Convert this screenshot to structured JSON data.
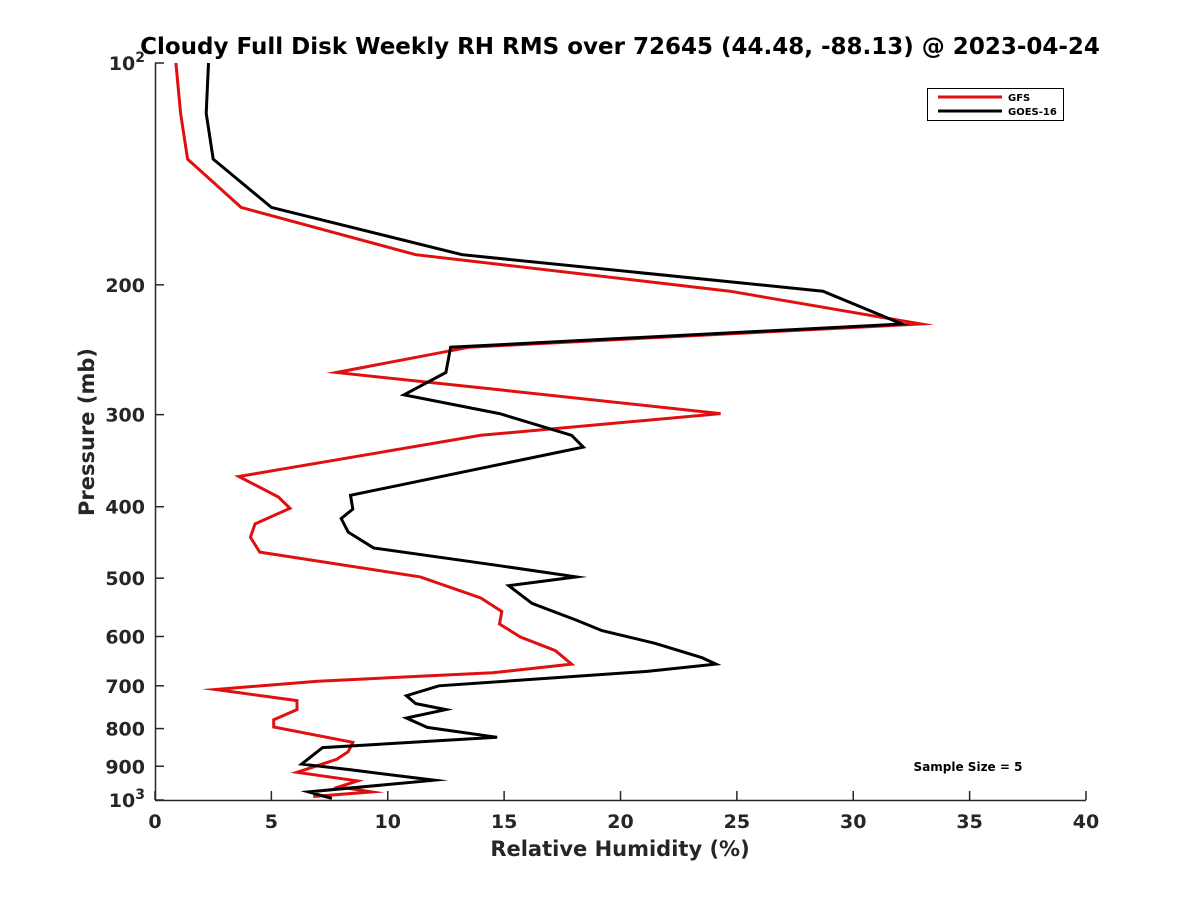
{
  "chart_data": {
    "type": "line",
    "title": "Cloudy Full Disk Weekly RH RMS over 72645 (44.48, -88.13) @ 2023-04-24",
    "xlabel": "Relative Humidity (%)",
    "ylabel": "Pressure (mb)",
    "xlim": [
      0,
      40
    ],
    "ylim": [
      100,
      1000
    ],
    "yscale": "log",
    "y_reversed": true,
    "grid": false,
    "legend_position": "top-right",
    "xticks": [
      0,
      5,
      10,
      15,
      20,
      25,
      30,
      35,
      40
    ],
    "xtick_labels": [
      "0",
      "5",
      "10",
      "15",
      "20",
      "25",
      "30",
      "35",
      "40"
    ],
    "yticks": [
      {
        "value": 100,
        "base": "10",
        "exp": "2"
      },
      {
        "value": 200,
        "base": "200",
        "exp": ""
      },
      {
        "value": 300,
        "base": "300",
        "exp": ""
      },
      {
        "value": 400,
        "base": "400",
        "exp": ""
      },
      {
        "value": 500,
        "base": "500",
        "exp": ""
      },
      {
        "value": 600,
        "base": "600",
        "exp": ""
      },
      {
        "value": 700,
        "base": "700",
        "exp": ""
      },
      {
        "value": 800,
        "base": "800",
        "exp": ""
      },
      {
        "value": 900,
        "base": "900",
        "exp": ""
      },
      {
        "value": 1000,
        "base": "10",
        "exp": "3"
      }
    ],
    "annotation": "Sample Size = 5",
    "series": [
      {
        "name": "GFS",
        "color": "#e01010",
        "points": [
          [
            0.9,
            100
          ],
          [
            1.1,
            117
          ],
          [
            1.4,
            135
          ],
          [
            3.7,
            157
          ],
          [
            11.2,
            182
          ],
          [
            24.7,
            204
          ],
          [
            32.9,
            226
          ],
          [
            13.5,
            243
          ],
          [
            7.8,
            263
          ],
          [
            15,
            278
          ],
          [
            24.3,
            299
          ],
          [
            14,
            320
          ],
          [
            3.6,
            364
          ],
          [
            5.3,
            388
          ],
          [
            5.8,
            402
          ],
          [
            4.3,
            422
          ],
          [
            4.1,
            440
          ],
          [
            4.5,
            461
          ],
          [
            11.4,
            498
          ],
          [
            14,
            532
          ],
          [
            14.9,
            555
          ],
          [
            14.8,
            577
          ],
          [
            15.7,
            601
          ],
          [
            17.2,
            627
          ],
          [
            17.9,
            654
          ],
          [
            14.5,
            672
          ],
          [
            7,
            690
          ],
          [
            2.6,
            708
          ],
          [
            6.1,
            733
          ],
          [
            6.1,
            754
          ],
          [
            5.1,
            778
          ],
          [
            5.1,
            796
          ],
          [
            8.5,
            835
          ],
          [
            8.3,
            860
          ],
          [
            7.8,
            881
          ],
          [
            6.1,
            917
          ],
          [
            8.7,
            942
          ],
          [
            7.9,
            960
          ],
          [
            9.3,
            975
          ],
          [
            6.8,
            989
          ]
        ]
      },
      {
        "name": "GOES-16",
        "color": "#000000",
        "points": [
          [
            2.3,
            100
          ],
          [
            2.2,
            117
          ],
          [
            2.5,
            135
          ],
          [
            5,
            157
          ],
          [
            13.2,
            182
          ],
          [
            28.7,
            204
          ],
          [
            32.1,
            226
          ],
          [
            12.7,
            243
          ],
          [
            12.5,
            263
          ],
          [
            10.7,
            282
          ],
          [
            14.8,
            299
          ],
          [
            17.9,
            320
          ],
          [
            18.4,
            332
          ],
          [
            8.4,
            386
          ],
          [
            8.5,
            403
          ],
          [
            8,
            415
          ],
          [
            8.3,
            433
          ],
          [
            9.4,
            455
          ],
          [
            14.8,
            481
          ],
          [
            18.1,
            498
          ],
          [
            15.2,
            512
          ],
          [
            16.2,
            541
          ],
          [
            18.1,
            570
          ],
          [
            19.2,
            589
          ],
          [
            21.5,
            613
          ],
          [
            23.5,
            641
          ],
          [
            24.1,
            654
          ],
          [
            21.2,
            669
          ],
          [
            12.2,
            700
          ],
          [
            10.8,
            722
          ],
          [
            11.2,
            740
          ],
          [
            12.5,
            754
          ],
          [
            10.8,
            774
          ],
          [
            11.7,
            797
          ],
          [
            14.7,
            822
          ],
          [
            7.2,
            849
          ],
          [
            6.3,
            894
          ],
          [
            8.4,
            910
          ],
          [
            12,
            940
          ],
          [
            6.6,
            975
          ],
          [
            7.6,
            995
          ]
        ]
      }
    ]
  }
}
